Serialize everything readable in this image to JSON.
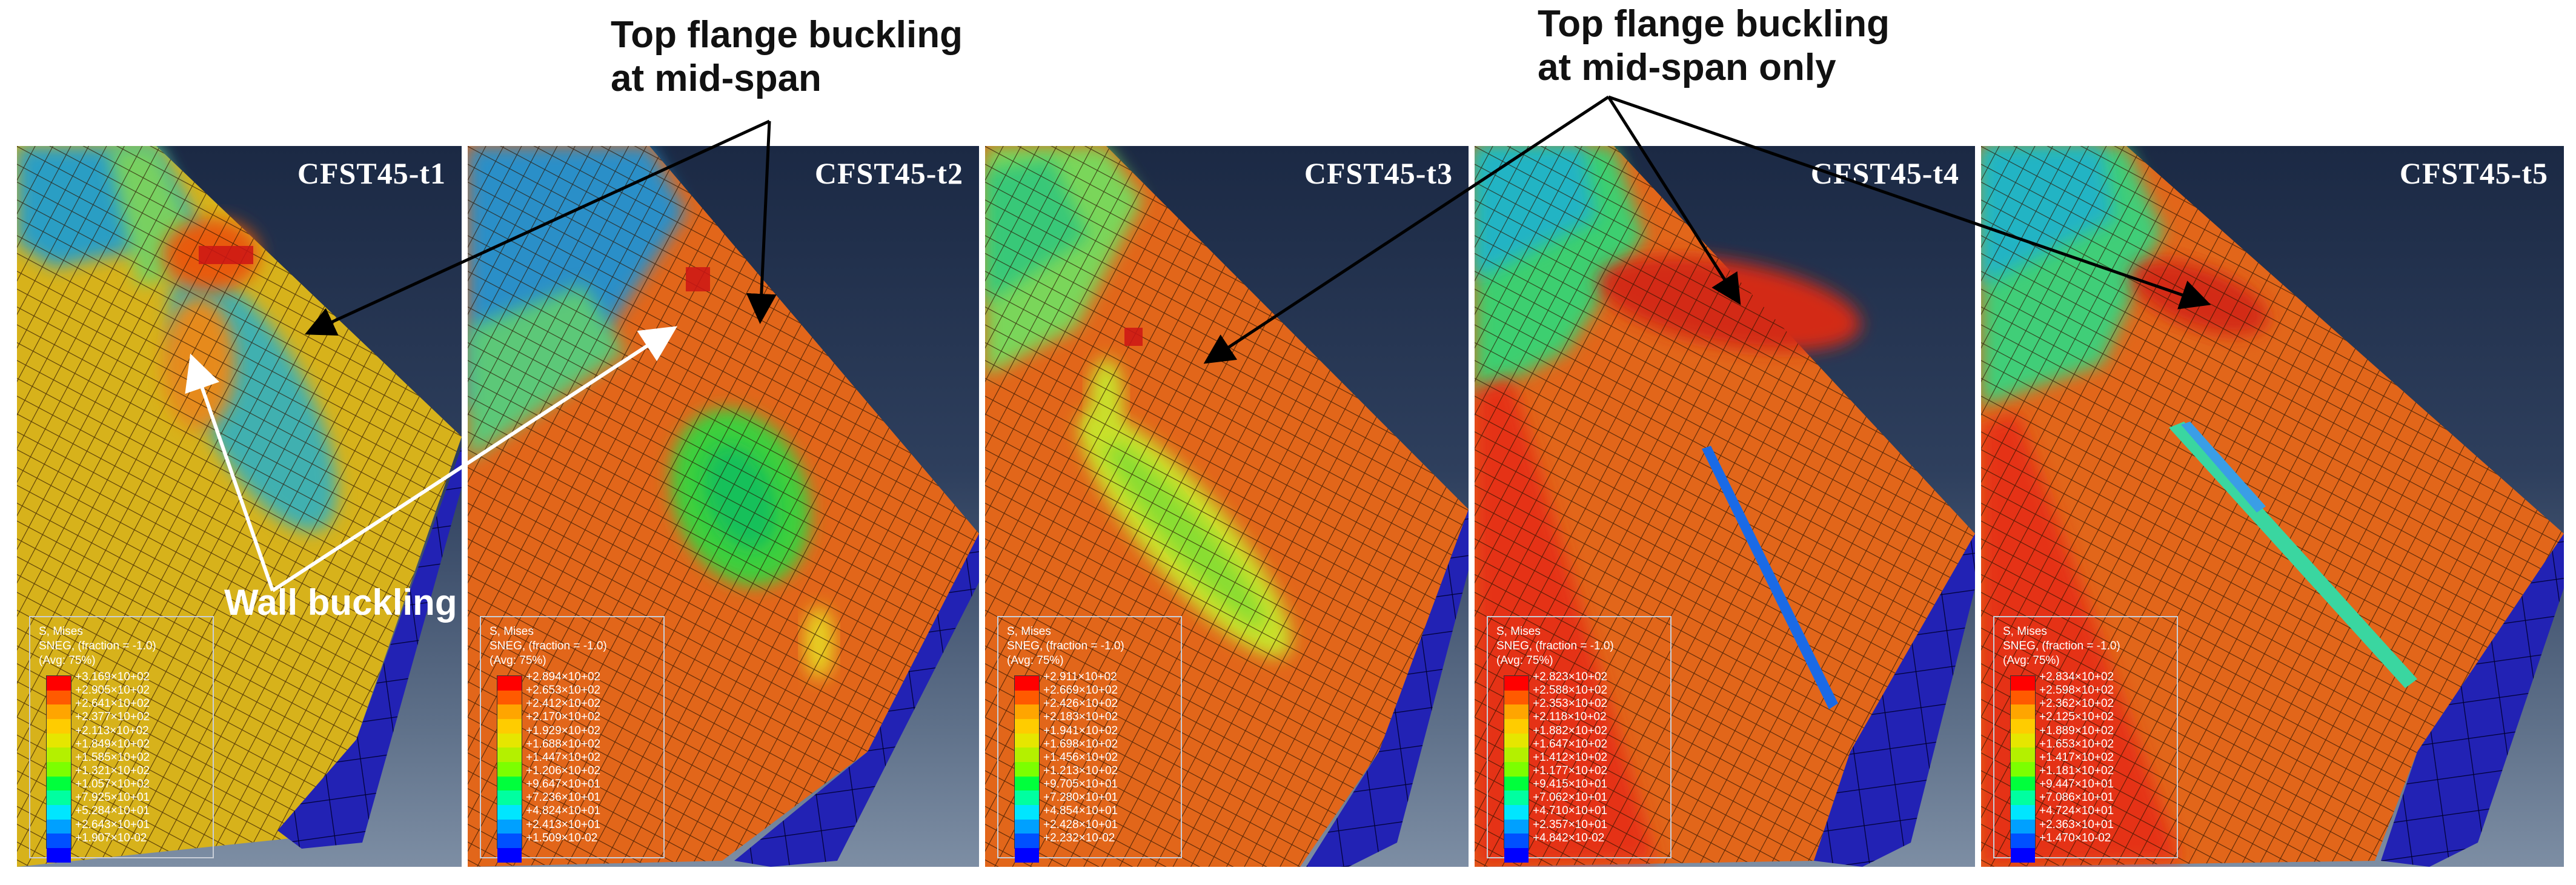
{
  "annotations": {
    "left_line1": "Top flange buckling",
    "left_line2": "at mid-span",
    "right_line1": "Top flange buckling",
    "right_line2": "at mid-span only",
    "wall": "Wall buckling"
  },
  "legend_common": {
    "line1": "S, Mises",
    "line2": "SNEG, (fraction = -1.0)",
    "line3": "(Avg: 75%)",
    "colors": [
      "#ff0000",
      "#ff5a00",
      "#ffa500",
      "#ffcc00",
      "#e6e600",
      "#b4f000",
      "#7cff00",
      "#00ff3c",
      "#00ffa0",
      "#00e6ff",
      "#00a0ff",
      "#0050ff",
      "#0000ff"
    ]
  },
  "panels": [
    {
      "title": "CFST45-t1",
      "values": [
        "+3.169×10+02",
        "+2.905×10+02",
        "+2.641×10+02",
        "+2.377×10+02",
        "+2.113×10+02",
        "+1.849×10+02",
        "+1.585×10+02",
        "+1.321×10+02",
        "+1.057×10+02",
        "+7.925×10+01",
        "+5.284×10+01",
        "+2.643×10+01",
        "+1.907×10-02"
      ]
    },
    {
      "title": "CFST45-t2",
      "values": [
        "+2.894×10+02",
        "+2.653×10+02",
        "+2.412×10+02",
        "+2.170×10+02",
        "+1.929×10+02",
        "+1.688×10+02",
        "+1.447×10+02",
        "+1.206×10+02",
        "+9.647×10+01",
        "+7.236×10+01",
        "+4.824×10+01",
        "+2.413×10+01",
        "+1.509×10-02"
      ]
    },
    {
      "title": "CFST45-t3",
      "values": [
        "+2.911×10+02",
        "+2.669×10+02",
        "+2.426×10+02",
        "+2.183×10+02",
        "+1.941×10+02",
        "+1.698×10+02",
        "+1.456×10+02",
        "+1.213×10+02",
        "+9.705×10+01",
        "+7.280×10+01",
        "+4.854×10+01",
        "+2.428×10+01",
        "+2.232×10-02"
      ]
    },
    {
      "title": "CFST45-t4",
      "values": [
        "+2.823×10+02",
        "+2.588×10+02",
        "+2.353×10+02",
        "+2.118×10+02",
        "+1.882×10+02",
        "+1.647×10+02",
        "+1.412×10+02",
        "+1.177×10+02",
        "+9.415×10+01",
        "+7.062×10+01",
        "+4.710×10+01",
        "+2.357×10+01",
        "+4.842×10-02"
      ]
    },
    {
      "title": "CFST45-t5",
      "values": [
        "+2.834×10+02",
        "+2.598×10+02",
        "+2.362×10+02",
        "+2.125×10+02",
        "+1.889×10+02",
        "+1.653×10+02",
        "+1.417×10+02",
        "+1.181×10+02",
        "+9.447×10+01",
        "+7.086×10+01",
        "+4.724×10+01",
        "+2.363×10+01",
        "+1.470×10-02"
      ]
    }
  ]
}
